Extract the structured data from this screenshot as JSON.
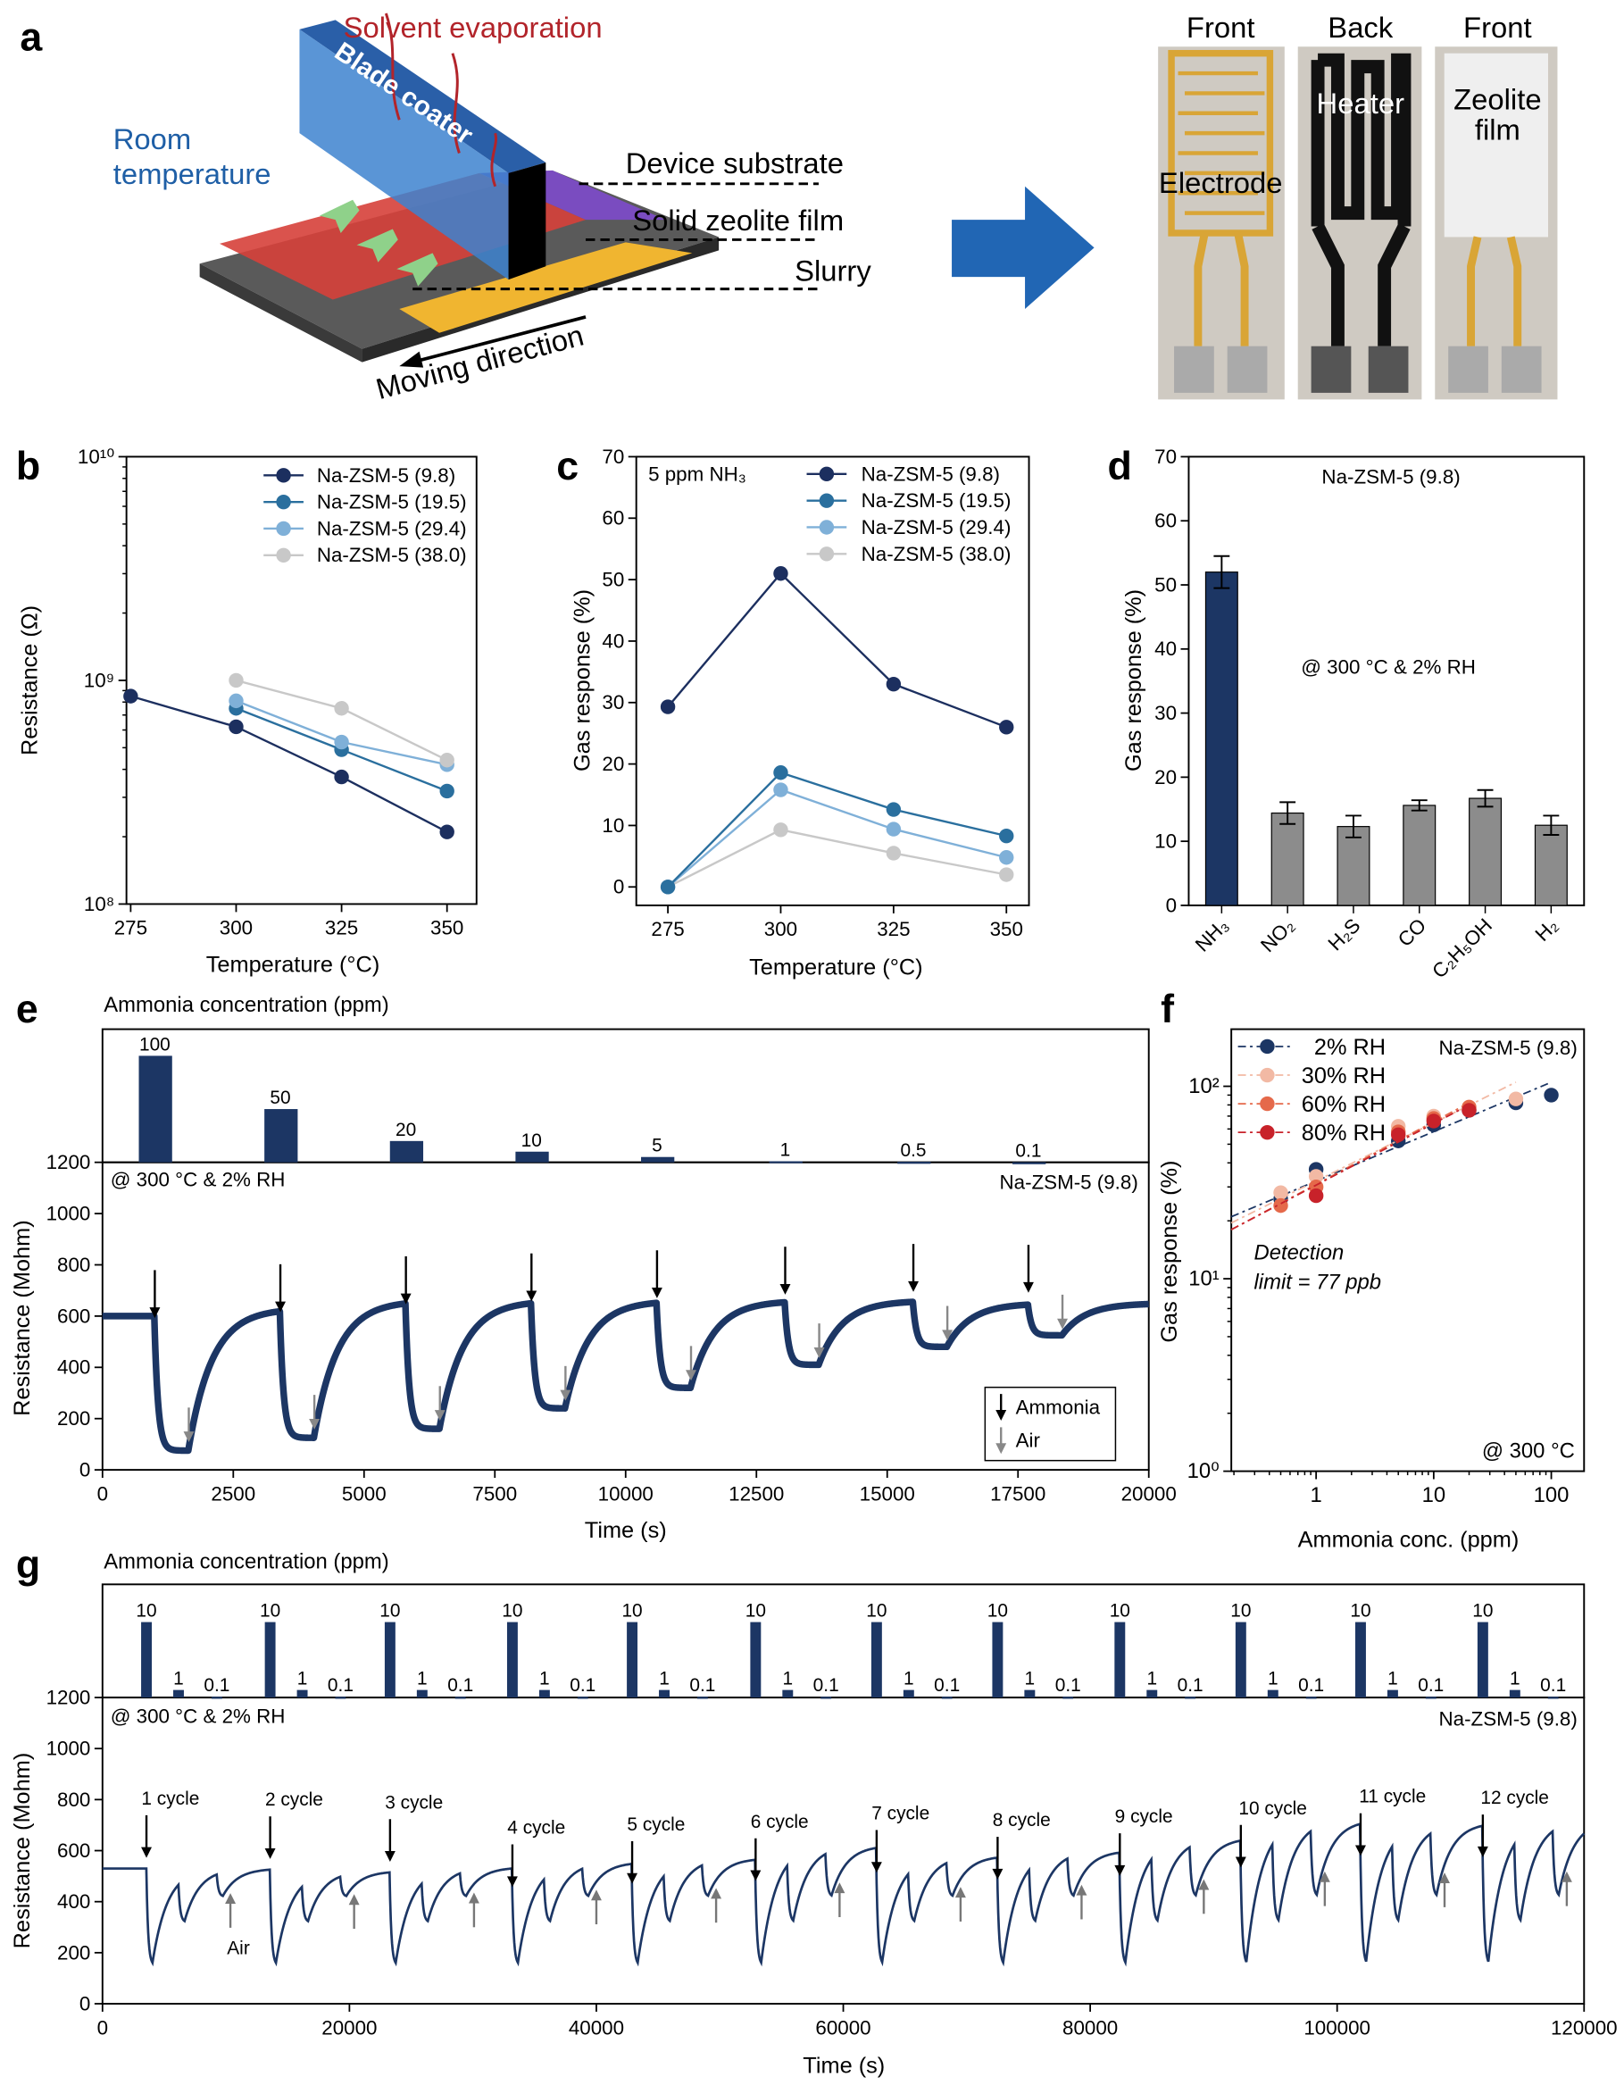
{
  "panel_labels": {
    "a": "a",
    "b": "b",
    "c": "c",
    "d": "d",
    "e": "e",
    "f": "f",
    "g": "g"
  },
  "panel_a": {
    "solvent_evaporation": "Solvent evaporation",
    "room_temperature": [
      "Room",
      "temperature"
    ],
    "blade_coater": "Blade coater",
    "device_substrate": "Device substrate",
    "solid_zeolite_film": "Solid zeolite film",
    "slurry": "Slurry",
    "moving_direction": "Moving direction",
    "colors": {
      "evaporation": "#b2242a",
      "room_temperature": "#1f5fa6",
      "arrow": "#2166b4"
    },
    "photos": [
      {
        "side": "Front",
        "label": [
          "Electrode"
        ]
      },
      {
        "side": "Back",
        "label": [
          "Heater"
        ]
      },
      {
        "side": "Front",
        "label": [
          "Zeolite",
          "film"
        ]
      }
    ]
  },
  "chart_data": [
    {
      "panel": "b",
      "type": "line",
      "xlabel": "Temperature (°C)",
      "ylabel": "Resistance (Ω)",
      "xlim": [
        274,
        357
      ],
      "ylim": [
        100000000.0,
        10000000000.0
      ],
      "yscale": "log",
      "xticks": [
        275,
        300,
        325,
        350
      ],
      "yticks": [
        100000000.0,
        1000000000.0,
        10000000000.0
      ],
      "ytick_labels": [
        "10⁸",
        "10⁹",
        "10¹⁰"
      ],
      "legend": "top-right",
      "series": [
        {
          "name": "Na-ZSM-5 (9.8)",
          "color": "#1c2f5f",
          "x": [
            275,
            300,
            325,
            350
          ],
          "y": [
            850000000.0,
            620000000.0,
            370000000.0,
            210000000.0
          ]
        },
        {
          "name": "Na-ZSM-5 (19.5)",
          "color": "#2a6f9e",
          "x": [
            300,
            325,
            350
          ],
          "y": [
            750000000.0,
            490000000.0,
            320000000.0
          ]
        },
        {
          "name": "Na-ZSM-5 (29.4)",
          "color": "#7fb0d8",
          "x": [
            300,
            325,
            350
          ],
          "y": [
            810000000.0,
            530000000.0,
            420000000.0
          ]
        },
        {
          "name": "Na-ZSM-5 (38.0)",
          "color": "#c8c8c8",
          "x": [
            300,
            325,
            350
          ],
          "y": [
            1000000000.0,
            750000000.0,
            440000000.0
          ]
        }
      ]
    },
    {
      "panel": "c",
      "type": "line",
      "xlabel": "Temperature (°C)",
      "ylabel": "Gas response (%)",
      "annotation": "5 ppm NH₃",
      "xlim": [
        268,
        355
      ],
      "ylim": [
        -3,
        70
      ],
      "xticks": [
        275,
        300,
        325,
        350
      ],
      "yticks": [
        0,
        10,
        20,
        30,
        40,
        50,
        60,
        70
      ],
      "legend": "top-right",
      "series": [
        {
          "name": "Na-ZSM-5 (9.8)",
          "color": "#1c2f5f",
          "x": [
            275,
            300,
            325,
            350
          ],
          "y": [
            29.3,
            51,
            33,
            26
          ]
        },
        {
          "name": "Na-ZSM-5 (19.5)",
          "color": "#2a6f9e",
          "x": [
            275,
            300,
            325,
            350
          ],
          "y": [
            0,
            18.6,
            12.6,
            8.3
          ]
        },
        {
          "name": "Na-ZSM-5 (29.4)",
          "color": "#7fb0d8",
          "x": [
            275,
            300,
            325,
            350
          ],
          "y": [
            0,
            15.8,
            9.4,
            4.8
          ]
        },
        {
          "name": "Na-ZSM-5 (38.0)",
          "color": "#c8c8c8",
          "x": [
            275,
            300,
            325,
            350
          ],
          "y": [
            0,
            9.3,
            5.5,
            2.0
          ]
        }
      ]
    },
    {
      "panel": "d",
      "type": "bar",
      "ylabel": "Gas response (%)",
      "annotations": [
        "Na-ZSM-5 (9.8)",
        "@ 300 °C & 2% RH"
      ],
      "categories": [
        "NH₃",
        "NO₂",
        "H₂S",
        "CO",
        "C₂H₅OH",
        "H₂"
      ],
      "values": [
        52,
        14.4,
        12.3,
        15.6,
        16.7,
        12.5
      ],
      "errors": [
        2.5,
        1.7,
        1.7,
        0.8,
        1.3,
        1.5
      ],
      "colors": [
        "#1c3664",
        "#8c8c8c",
        "#8c8c8c",
        "#8c8c8c",
        "#8c8c8c",
        "#8c8c8c"
      ],
      "ylim": [
        0,
        70
      ],
      "yticks": [
        0,
        10,
        20,
        30,
        40,
        50,
        60,
        70
      ]
    },
    {
      "panel": "e",
      "type": "line",
      "top_title": "Ammonia concentration (ppm)",
      "concentrations": [
        100,
        50,
        20,
        10,
        5,
        1,
        0.5,
        0.1
      ],
      "concentration_labels": [
        "100",
        "50",
        "20",
        "10",
        "5",
        "1",
        "0.5",
        "0.1"
      ],
      "top_ylim": [
        0,
        125
      ],
      "exposure_times": [
        1000,
        3400,
        5800,
        8200,
        10600,
        13050,
        15500,
        17700
      ],
      "air_times": [
        1650,
        4050,
        6450,
        8850,
        11250,
        13700,
        16150,
        18350
      ],
      "min_resistance": [
        75,
        125,
        160,
        240,
        320,
        410,
        480,
        525
      ],
      "baseline_start": 600,
      "baseline_after": [
        630,
        660,
        660,
        660,
        660,
        660,
        650,
        650
      ],
      "xlim": [
        0,
        20000
      ],
      "ylim": [
        0,
        1200
      ],
      "xticks": [
        0,
        2500,
        5000,
        7500,
        10000,
        12500,
        15000,
        17500,
        20000
      ],
      "yticks": [
        0,
        200,
        400,
        600,
        800,
        1000,
        1200
      ],
      "xlabel": "Time (s)",
      "ylabel": "Resistance (Mohm)",
      "condition": "@ 300 °C & 2% RH",
      "material": "Na-ZSM-5 (9.8)",
      "legend": {
        "ammonia": "Ammonia",
        "air": "Air"
      },
      "color": "#1c3664"
    },
    {
      "panel": "f",
      "type": "scatter",
      "xlabel": "Ammonia conc. (ppm)",
      "ylabel": "Gas response (%)",
      "xscale": "log",
      "yscale": "log",
      "xlim": [
        0.19,
        190
      ],
      "ylim": [
        1,
        198
      ],
      "xticks": [
        1,
        10,
        100
      ],
      "xtick_labels": [
        "1",
        "10",
        "100"
      ],
      "yticks": [
        1,
        10,
        100
      ],
      "ytick_labels": [
        "10⁰",
        "10¹",
        "10²"
      ],
      "material": "Na-ZSM-5 (9.8)",
      "condition": "@ 300 °C",
      "detection": [
        "Detection",
        "limit = 77 ppb"
      ],
      "legend": "top-left",
      "series": [
        {
          "name": "2% RH",
          "color": "#1c3664",
          "x": [
            0.5,
            1,
            5,
            10,
            20,
            50,
            100
          ],
          "y": [
            26,
            37,
            52,
            63,
            75,
            82,
            90
          ],
          "fit": [
            [
              0.19,
              21
            ],
            [
              100,
              105
            ]
          ]
        },
        {
          "name": "30% RH",
          "color": "#f2b9a4",
          "x": [
            0.5,
            1,
            5,
            10,
            20,
            50
          ],
          "y": [
            28,
            34,
            62,
            70,
            76,
            86
          ],
          "fit": [
            [
              0.19,
              19.5
            ],
            [
              50,
              105
            ]
          ]
        },
        {
          "name": "60% RH",
          "color": "#e5694a",
          "x": [
            0.5,
            1,
            5,
            10,
            20
          ],
          "y": [
            24,
            30,
            58,
            68,
            78
          ],
          "fit": [
            [
              0.19,
              18
            ],
            [
              20,
              82
            ]
          ]
        },
        {
          "name": "80% RH",
          "color": "#c8222a",
          "x": [
            1,
            5,
            10,
            20
          ],
          "y": [
            27,
            56,
            66,
            75
          ],
          "fit": [
            [
              0.19,
              18
            ],
            [
              20,
              80
            ]
          ]
        }
      ]
    },
    {
      "panel": "g",
      "type": "line",
      "top_title": "Ammonia concentration (ppm)",
      "concentrations": [
        10,
        1,
        0.1
      ],
      "concentration_labels": [
        "10",
        "1",
        "0.1"
      ],
      "top_ylim": [
        0,
        15
      ],
      "pulse_offsets_s": [
        0,
        2600,
        5700
      ],
      "air_offset_s": 6800,
      "min_resistance": [
        150,
        320,
        420
      ],
      "cycles": [
        {
          "label": "1 cycle",
          "start": 3560,
          "baseline": 530
        },
        {
          "label": "2 cycle",
          "start": 13580,
          "baseline": 520
        },
        {
          "label": "3 cycle",
          "start": 23290,
          "baseline": 535
        },
        {
          "label": "4 cycle",
          "start": 33200,
          "baseline": 555
        },
        {
          "label": "5 cycle",
          "start": 42900,
          "baseline": 570
        },
        {
          "label": "6 cycle",
          "start": 52900,
          "baseline": 620
        },
        {
          "label": "7 cycle",
          "start": 62700,
          "baseline": 580
        },
        {
          "label": "8 cycle",
          "start": 72500,
          "baseline": 600
        },
        {
          "label": "9 cycle",
          "start": 82400,
          "baseline": 650
        },
        {
          "label": "10 cycle",
          "start": 92200,
          "baseline": 720
        },
        {
          "label": "11 cycle",
          "start": 101900,
          "baseline": 710
        },
        {
          "label": "12 cycle",
          "start": 111800,
          "baseline": 720
        }
      ],
      "air_label": "Air",
      "xlim": [
        0,
        120000
      ],
      "ylim": [
        0,
        1200
      ],
      "xticks": [
        0,
        20000,
        40000,
        60000,
        80000,
        100000,
        120000
      ],
      "yticks": [
        0,
        200,
        400,
        600,
        800,
        1000,
        1200
      ],
      "xlabel": "Time (s)",
      "ylabel": "Resistance (Mohm)",
      "condition": "@ 300 °C & 2% RH",
      "material": "Na-ZSM-5 (9.8)",
      "color": "#1c3664"
    }
  ]
}
